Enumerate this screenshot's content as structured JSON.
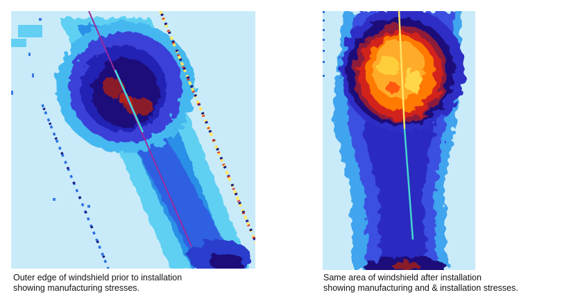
{
  "images": {
    "before": {
      "caption_line1": "Outer edge of windshield prior to installation",
      "caption_line2": "showing manufacturing stresses."
    },
    "after": {
      "caption_line1": "Same area of windshield after  installation",
      "caption_line2": "showing manufacturing  and & installation stresses."
    }
  },
  "colors": {
    "background": "#c9ebf9",
    "low_stress": "#55c8f0",
    "mid_stress": "#3a3fd8",
    "high_stress": "#1e0e7a",
    "peak_red": "#c8151c",
    "peak_orange": "#ff8a00",
    "peak_yellow": "#ffe14a"
  }
}
